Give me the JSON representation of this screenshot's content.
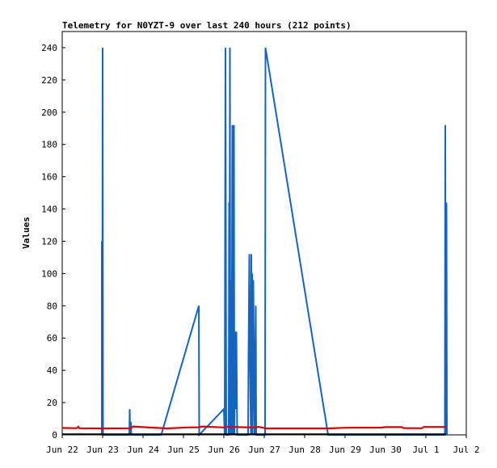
{
  "chart_data": {
    "type": "line",
    "title": "Telemetry for N0YZT-9 over last 240 hours (212 points)",
    "xlabel": "",
    "ylabel": "Values",
    "x_ticks": [
      "Jun 22",
      "Jun 23",
      "Jun 24",
      "Jun 25",
      "Jun 26",
      "Jun 27",
      "Jun 28",
      "Jun 29",
      "Jun 30",
      "Jul 1",
      "Jul 2"
    ],
    "xlim": [
      0,
      10
    ],
    "ylim": [
      0,
      250
    ],
    "y_ticks": [
      0,
      20,
      40,
      60,
      80,
      100,
      120,
      140,
      160,
      180,
      200,
      220,
      240
    ],
    "grid": false,
    "series": [
      {
        "color": "#1565c0",
        "points": [
          [
            0.98,
            0
          ],
          [
            0.98,
            120
          ],
          [
            0.99,
            0
          ],
          [
            1.0,
            240
          ],
          [
            1.01,
            0
          ],
          [
            1.66,
            0
          ],
          [
            1.67,
            16
          ],
          [
            1.68,
            0
          ],
          [
            1.7,
            8
          ],
          [
            1.71,
            0
          ],
          [
            2.45,
            0
          ],
          [
            3.38,
            80
          ],
          [
            3.39,
            0
          ],
          [
            4.0,
            16
          ],
          [
            4.02,
            0
          ],
          [
            4.04,
            240
          ],
          [
            4.05,
            120
          ],
          [
            4.06,
            0
          ],
          [
            4.12,
            0
          ],
          [
            4.13,
            144
          ],
          [
            4.14,
            72
          ],
          [
            4.15,
            240
          ],
          [
            4.16,
            0
          ],
          [
            4.18,
            96
          ],
          [
            4.19,
            0
          ],
          [
            4.21,
            192
          ],
          [
            4.22,
            0
          ],
          [
            4.25,
            192
          ],
          [
            4.26,
            0
          ],
          [
            4.28,
            64
          ],
          [
            4.29,
            16
          ],
          [
            4.31,
            64
          ],
          [
            4.32,
            32
          ],
          [
            4.33,
            0
          ],
          [
            4.6,
            0
          ],
          [
            4.61,
            48
          ],
          [
            4.63,
            112
          ],
          [
            4.65,
            40
          ],
          [
            4.67,
            0
          ],
          [
            4.68,
            112
          ],
          [
            4.69,
            70
          ],
          [
            4.7,
            100
          ],
          [
            4.71,
            0
          ],
          [
            4.73,
            96
          ],
          [
            4.74,
            60
          ],
          [
            4.76,
            0
          ],
          [
            4.79,
            80
          ],
          [
            4.8,
            0
          ],
          [
            5.02,
            0
          ],
          [
            5.03,
            240
          ],
          [
            6.58,
            0
          ],
          [
            9.47,
            0
          ],
          [
            9.48,
            192
          ],
          [
            9.49,
            0
          ],
          [
            9.51,
            144
          ],
          [
            9.52,
            0
          ]
        ]
      },
      {
        "color": "#e00000",
        "points": [
          [
            0.0,
            4.3
          ],
          [
            0.35,
            4.1
          ],
          [
            0.4,
            5.0
          ],
          [
            0.42,
            4.1
          ],
          [
            1.0,
            4.0
          ],
          [
            1.7,
            4.1
          ],
          [
            1.75,
            5.2
          ],
          [
            2.2,
            4.5
          ],
          [
            2.6,
            4.0
          ],
          [
            3.1,
            4.6
          ],
          [
            3.4,
            4.7
          ],
          [
            3.45,
            5.2
          ],
          [
            4.0,
            4.6
          ],
          [
            4.05,
            5.0
          ],
          [
            4.8,
            4.5
          ],
          [
            4.85,
            5.0
          ],
          [
            5.0,
            4.3
          ],
          [
            5.05,
            4.0
          ],
          [
            6.6,
            4.0
          ],
          [
            7.0,
            4.4
          ],
          [
            7.9,
            4.5
          ],
          [
            8.0,
            4.8
          ],
          [
            8.4,
            4.8
          ],
          [
            8.45,
            4.2
          ],
          [
            8.9,
            4.1
          ],
          [
            8.95,
            4.9
          ],
          [
            9.5,
            4.9
          ]
        ]
      },
      {
        "color": "#000000",
        "points": [
          [
            0.0,
            0.3
          ],
          [
            9.5,
            0.3
          ]
        ]
      }
    ]
  }
}
